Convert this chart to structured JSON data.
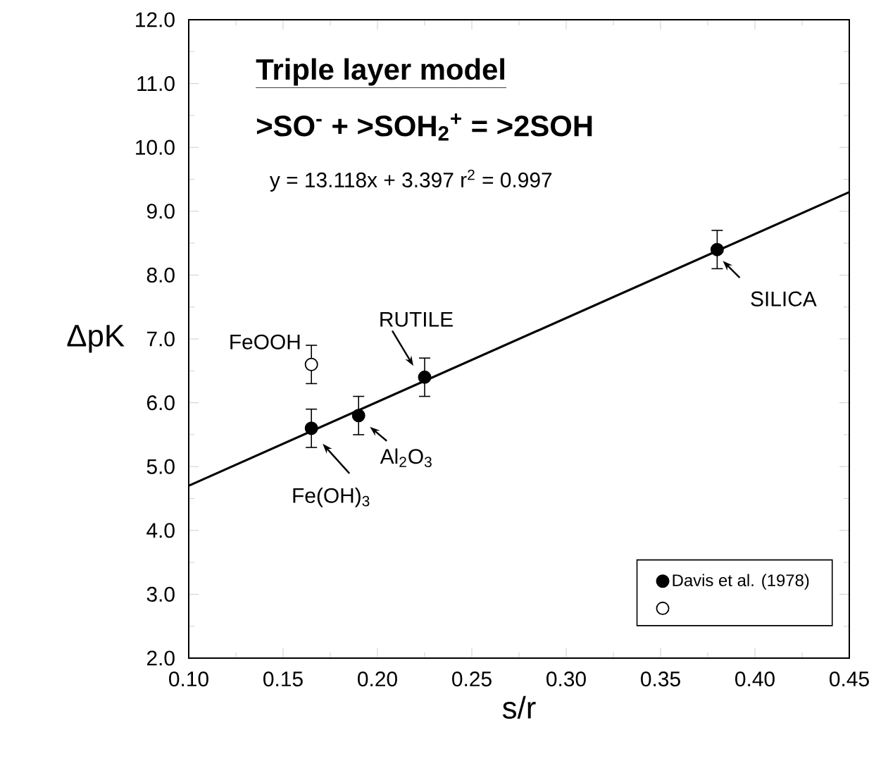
{
  "chart_data": {
    "type": "scatter",
    "title": "Triple layer model",
    "subtitle": ">SO$^{-}$ + >SOH$_{2}$$^{+}$ = >2SOH",
    "xlabel": "s/r",
    "ylabel": "ΔpK",
    "annotations": [
      "y = 13.118x + 3.397   r$^{2}$ = 0.997",
      {
        "text": "FeOOH",
        "x": 0.165,
        "y": 6.6
      },
      {
        "text": "RUTILE",
        "x": 0.225,
        "y": 6.4
      },
      {
        "text": "Al$_{2}$O$_{3}$",
        "x": 0.19,
        "y": 5.8
      },
      {
        "text": "Fe(OH)$_{3}$",
        "x": 0.165,
        "y": 5.6
      },
      {
        "text": "SILICA",
        "x": 0.38,
        "y": 8.4
      }
    ],
    "series": [
      {
        "name": "Davis et al. (1978)",
        "marker": "circle",
        "color": "#000000",
        "x": [
          0.165,
          0.19,
          0.225,
          0.38
        ],
        "values": [
          5.6,
          5.8,
          6.4,
          8.4
        ],
        "errors": [
          0.3,
          0.3,
          0.3,
          0.3
        ]
      },
      {
        "marker": "circle",
        "color": "#ffffff",
        "x": [
          0.165
        ],
        "values": [
          6.6
        ],
        "errors": [
          0.3
        ]
      },
      {
        "type": "line",
        "marker": "none",
        "color": "#000000",
        "x": [
          0.1,
          0.45
        ],
        "values": [
          4.7,
          9.3
        ]
      }
    ],
    "xlim": [
      0.1,
      0.45
    ],
    "ylim": [
      2,
      12
    ],
    "xticks": [
      {
        "value": 0.1,
        "label": "0.10"
      },
      {
        "value": 0.15,
        "label": "0.15"
      },
      {
        "value": 0.2,
        "label": "0.20"
      },
      {
        "value": 0.25,
        "label": "0.25"
      },
      {
        "value": 0.3,
        "label": "0.30"
      },
      {
        "value": 0.35,
        "label": "0.35"
      },
      {
        "value": 0.4,
        "label": "0.40"
      },
      {
        "value": 0.45,
        "label": "0.45"
      }
    ],
    "yticks": [
      {
        "value": 2,
        "label": "2.0"
      },
      {
        "value": 3,
        "label": "3.0"
      },
      {
        "value": 4,
        "label": "4.0"
      },
      {
        "value": 5,
        "label": "5.0"
      },
      {
        "value": 6,
        "label": "6.0"
      },
      {
        "value": 7,
        "label": "7.0"
      },
      {
        "value": 8,
        "label": "8.0"
      },
      {
        "value": 9,
        "label": "9.0"
      },
      {
        "value": 10,
        "label": "10.0"
      },
      {
        "value": 11,
        "label": "11.0"
      },
      {
        "value": 12,
        "label": "12.0"
      }
    ],
    "legend": "bottom right"
  }
}
